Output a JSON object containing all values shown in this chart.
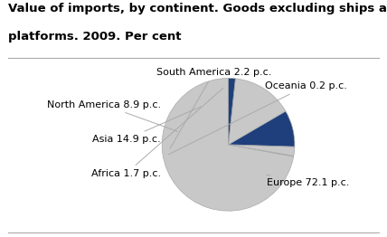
{
  "title_line1": "Value of imports, by continent. Goods excluding ships and oil",
  "title_line2": "platforms. 2009. Per cent",
  "segments": [
    {
      "label": "Europe 72.1 p.c.",
      "value": 72.1,
      "color": "#c8c8c8"
    },
    {
      "label": "Oceania 0.2 p.c.",
      "value": 0.2,
      "color": "#c8c8c8"
    },
    {
      "label": "South America 2.2 p.c.",
      "value": 2.2,
      "color": "#c8c8c8"
    },
    {
      "label": "North America 8.9 p.c.",
      "value": 8.9,
      "color": "#1e3f7c"
    },
    {
      "label": "Asia 14.9 p.c.",
      "value": 14.9,
      "color": "#c8c8c8"
    },
    {
      "label": "Africa 1.7 p.c.",
      "value": 1.7,
      "color": "#1e3f7c"
    }
  ],
  "startangle": 90,
  "background_color": "#ffffff",
  "title_fontsize": 9.5,
  "label_fontsize": 8,
  "edge_color": "#aaaaaa",
  "line_color": "#aaaaaa",
  "title_color": "#000000",
  "label_color": "#000000",
  "divider_color": "#aaaaaa"
}
